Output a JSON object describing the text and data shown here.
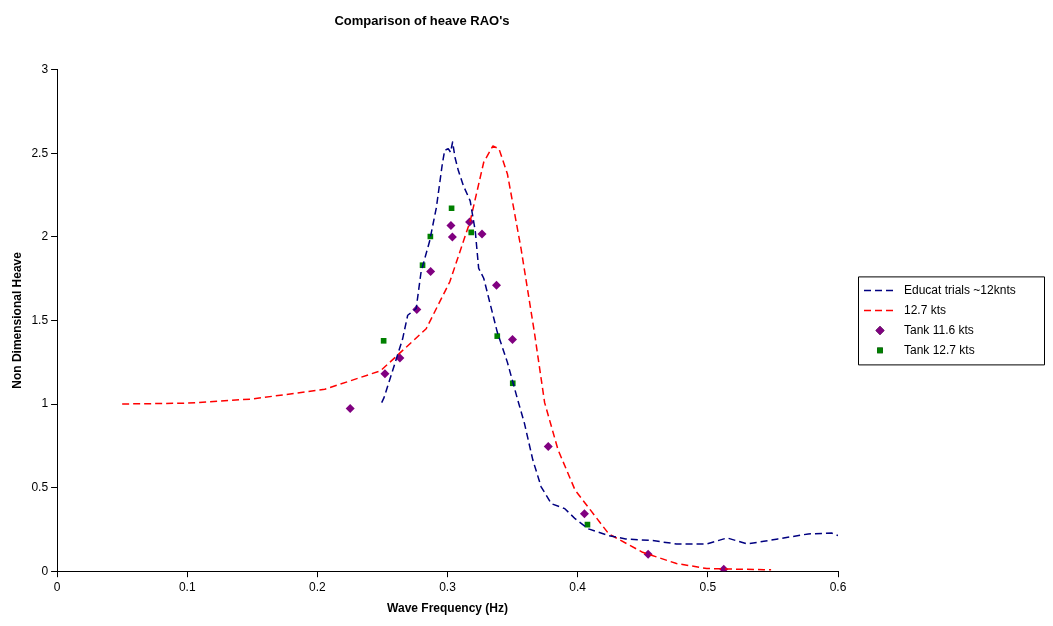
{
  "chart_data": {
    "type": "line",
    "title": "Comparison of heave RAO's",
    "xlabel": "Wave Frequency (Hz)",
    "ylabel": "Non Dimensional Heave",
    "xlim": [
      0,
      0.6
    ],
    "xticks": [
      0,
      0.1,
      0.2,
      0.3,
      0.4,
      0.5,
      0.6
    ],
    "ylim": [
      0,
      3
    ],
    "yticks": [
      0,
      0.5,
      1,
      1.5,
      2,
      2.5,
      3
    ],
    "grid": false,
    "legend": "right",
    "series": [
      {
        "name": "Educat trials ~12knts",
        "type": "line",
        "color": "#000080",
        "marker": "none",
        "line_style": "dashed",
        "x": [
          0.2494,
          0.2512,
          0.259,
          0.2655,
          0.2694,
          0.2759,
          0.2797,
          0.2862,
          0.2914,
          0.296,
          0.2978,
          0.3005,
          0.3023,
          0.3039,
          0.3057,
          0.3083,
          0.3122,
          0.3174,
          0.3213,
          0.3239,
          0.3278,
          0.333,
          0.3382,
          0.346,
          0.3538,
          0.359,
          0.3655,
          0.3719,
          0.3797,
          0.3901,
          0.398,
          0.4083,
          0.4239,
          0.4369,
          0.4577,
          0.4759,
          0.4992,
          0.5148,
          0.5304,
          0.5538,
          0.5772,
          0.5953,
          0.6
        ],
        "values": [
          1.008,
          1.038,
          1.229,
          1.39,
          1.531,
          1.571,
          1.792,
          1.973,
          2.174,
          2.436,
          2.517,
          2.527,
          2.506,
          2.567,
          2.476,
          2.396,
          2.305,
          2.215,
          2.034,
          1.812,
          1.752,
          1.591,
          1.43,
          1.249,
          1.028,
          0.887,
          0.666,
          0.505,
          0.404,
          0.374,
          0.314,
          0.253,
          0.213,
          0.193,
          0.183,
          0.163,
          0.163,
          0.199,
          0.163,
          0.193,
          0.223,
          0.228,
          0.213
        ]
      },
      {
        "name": "12.7 kts",
        "type": "line",
        "color": "#ff0000",
        "marker": "none",
        "line_style": "dashed",
        "x": [
          0.05,
          0.1,
          0.15,
          0.2057,
          0.2486,
          0.2836,
          0.3018,
          0.3174,
          0.3278,
          0.3348,
          0.3395,
          0.346,
          0.3564,
          0.3667,
          0.3746,
          0.3849,
          0.398,
          0.4239,
          0.4499,
          0.4759,
          0.4992,
          0.5486
        ],
        "values": [
          1.0,
          1.005,
          1.03,
          1.088,
          1.199,
          1.45,
          1.732,
          2.094,
          2.446,
          2.543,
          2.527,
          2.376,
          1.933,
          1.43,
          1.008,
          0.726,
          0.485,
          0.223,
          0.113,
          0.046,
          0.016,
          0.008
        ]
      },
      {
        "name": "Tank 11.6 kts",
        "type": "scatter",
        "color": "#800080",
        "marker": "diamond",
        "x": [
          0.2252,
          0.2519,
          0.2634,
          0.2764,
          0.287,
          0.3026,
          0.3037,
          0.3169,
          0.3265,
          0.3376,
          0.3499,
          0.3774,
          0.4052,
          0.4541,
          0.5122
        ],
        "values": [
          0.973,
          1.181,
          1.275,
          1.565,
          1.792,
          2.068,
          1.999,
          2.088,
          2.017,
          1.71,
          1.386,
          0.746,
          0.344,
          0.101,
          0.012
        ]
      },
      {
        "name": "Tank 12.7 kts",
        "type": "scatter",
        "color": "#008000",
        "marker": "square",
        "x": [
          0.2509,
          0.2808,
          0.2868,
          0.3031,
          0.3182,
          0.3382,
          0.3501,
          0.4075
        ],
        "values": [
          1.378,
          1.83,
          2.002,
          2.171,
          2.026,
          1.406,
          1.124,
          0.279
        ]
      }
    ]
  }
}
